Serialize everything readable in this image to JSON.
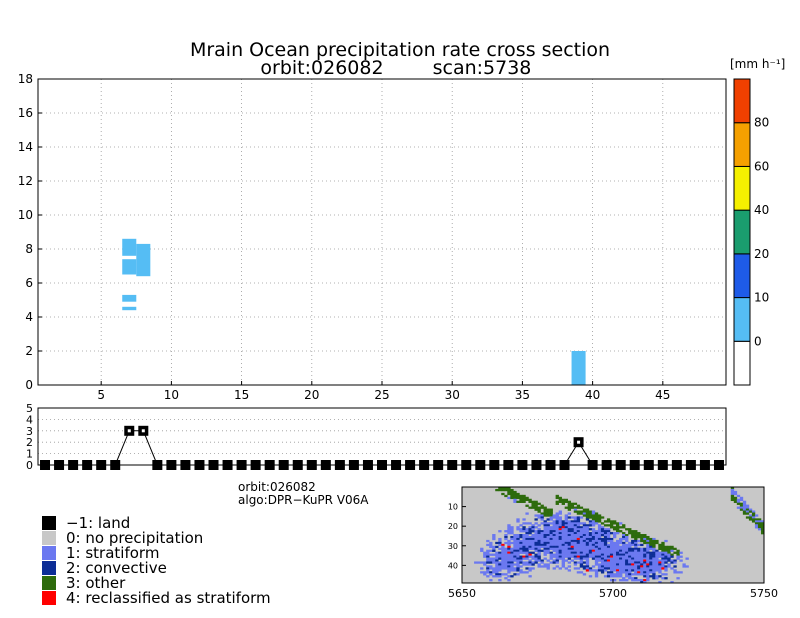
{
  "chart_data": [
    {
      "type": "heatmap",
      "title_line1": "Mrain Ocean precipitation rate cross section",
      "title_line2_orbit": "orbit:026082",
      "title_line2_scan": "scan:5738",
      "x_ticks": [
        5,
        10,
        15,
        20,
        25,
        30,
        35,
        40,
        45
      ],
      "y_ticks": [
        0,
        2,
        4,
        6,
        8,
        10,
        12,
        14,
        16,
        18
      ],
      "xlim": [
        0.5,
        49.5
      ],
      "ylim": [
        0,
        18
      ],
      "grid": true,
      "colorbar": {
        "unit_label": "[mm h⁻¹]",
        "bins": [
          {
            "color": "#ffffff",
            "label": "0"
          },
          {
            "color": "#55bdf4",
            "label": "10"
          },
          {
            "color": "#1e5be8",
            "label": "20"
          },
          {
            "color": "#1a9d6e",
            "label": "40"
          },
          {
            "color": "#f5f000",
            "label": "60"
          },
          {
            "color": "#f5a000",
            "label": "80"
          },
          {
            "color": "#f04000",
            "label": ""
          }
        ]
      },
      "cells": [
        {
          "x0": 6.5,
          "x1": 7.5,
          "y0": 7.6,
          "y1": 8.6,
          "bin": 1
        },
        {
          "x0": 6.5,
          "x1": 7.5,
          "y0": 6.5,
          "y1": 7.4,
          "bin": 1
        },
        {
          "x0": 7.5,
          "x1": 8.5,
          "y0": 6.4,
          "y1": 8.3,
          "bin": 1
        },
        {
          "x0": 6.5,
          "x1": 7.5,
          "y0": 4.9,
          "y1": 5.3,
          "bin": 1
        },
        {
          "x0": 6.5,
          "x1": 7.5,
          "y0": 4.4,
          "y1": 4.6,
          "bin": 1
        },
        {
          "x0": 38.5,
          "x1": 39.5,
          "y0": 0,
          "y1": 2.0,
          "bin": 1
        }
      ]
    },
    {
      "type": "line",
      "description": "rain type per ray",
      "y_ticks": [
        0,
        1,
        2,
        3,
        4,
        5
      ],
      "ylim": [
        0,
        5
      ],
      "xlim": [
        0.5,
        49.5
      ],
      "x": [
        1,
        2,
        3,
        4,
        5,
        6,
        7,
        8,
        9,
        10,
        11,
        12,
        13,
        14,
        15,
        16,
        17,
        18,
        19,
        20,
        21,
        22,
        23,
        24,
        25,
        26,
        27,
        28,
        29,
        30,
        31,
        32,
        33,
        34,
        35,
        36,
        37,
        38,
        39,
        40,
        41,
        42,
        43,
        44,
        45,
        46,
        47,
        48,
        49
      ],
      "values": [
        0,
        0,
        0,
        0,
        0,
        0,
        3,
        3,
        0,
        0,
        0,
        0,
        0,
        0,
        0,
        0,
        0,
        0,
        0,
        0,
        0,
        0,
        0,
        0,
        0,
        0,
        0,
        0,
        0,
        0,
        0,
        0,
        0,
        0,
        0,
        0,
        0,
        0,
        2,
        0,
        0,
        0,
        0,
        0,
        0,
        0,
        0,
        0,
        0
      ]
    }
  ],
  "info": {
    "orbit": "orbit:026082",
    "algo": "algo:DPR−KuPR V06A"
  },
  "legend": [
    {
      "code": "−1: land",
      "color": "#000000"
    },
    {
      "code": "0: no precipitation",
      "color": "#c8c8c8"
    },
    {
      "code": "1: stratiform",
      "color": "#6b78f0"
    },
    {
      "code": "2: convective",
      "color": "#0c2d96"
    },
    {
      "code": "3: other",
      "color": "#2d6b0c"
    },
    {
      "code": "4: reclassified as stratiform",
      "color": "#ff0000"
    }
  ],
  "map": {
    "x_ticks": [
      "5650",
      "5700",
      "5750"
    ],
    "y_ticks": [
      "10",
      "20",
      "30",
      "40"
    ]
  }
}
